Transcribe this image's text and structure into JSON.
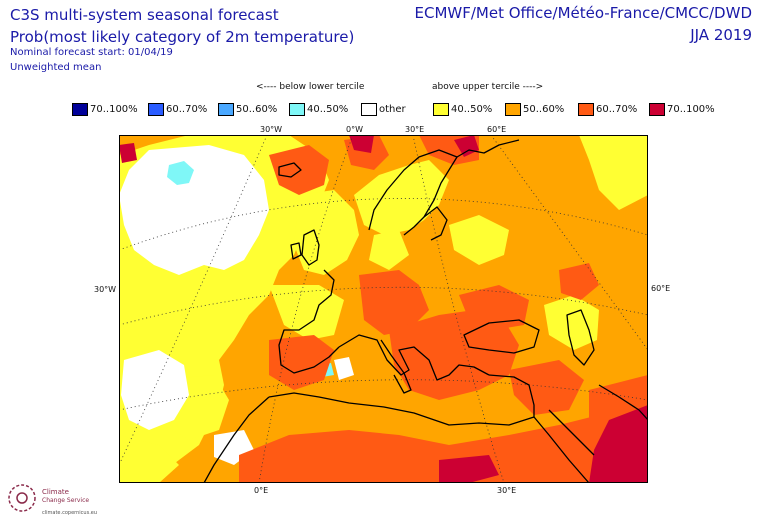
{
  "header": {
    "title_line1": "C3S multi-system seasonal forecast",
    "title_line2": "Prob(most likely category of 2m temperature)",
    "nominal_start": "Nominal forecast start: 01/04/19",
    "mean_type": "Unweighted mean",
    "centres": "ECMWF/Met Office/Météo-France/CMCC/DWD",
    "season": "JJA 2019"
  },
  "legend": {
    "below_label": "<---- below lower tercile",
    "above_label": "above upper tercile ---->",
    "items": [
      {
        "label": "70..100%",
        "color": "#000099"
      },
      {
        "label": "60..70%",
        "color": "#2a5cff"
      },
      {
        "label": "50..60%",
        "color": "#4aa8ff"
      },
      {
        "label": "40..50%",
        "color": "#7ff7f7"
      },
      {
        "label": "other",
        "color": "#ffffff"
      },
      {
        "label": "40..50%",
        "color": "#ffff33"
      },
      {
        "label": "50..60%",
        "color": "#ffa500"
      },
      {
        "label": "60..70%",
        "color": "#ff5a14"
      },
      {
        "label": "70..100%",
        "color": "#cc0033"
      }
    ]
  },
  "axes": {
    "top": [
      "30°W",
      "0°W",
      "30°E",
      "60°E"
    ],
    "left": "30°W",
    "right": "60°E",
    "bottom": [
      "0°E",
      "30°E"
    ]
  },
  "logo": {
    "line1": "Climate",
    "line2": "Change Service",
    "line3": "climate.copernicus.eu"
  }
}
